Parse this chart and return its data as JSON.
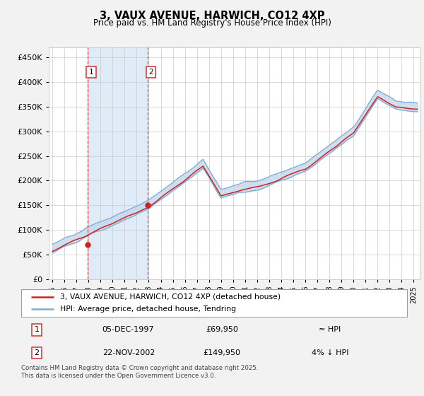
{
  "title": "3, VAUX AVENUE, HARWICH, CO12 4XP",
  "subtitle": "Price paid vs. HM Land Registry's House Price Index (HPI)",
  "ytick_values": [
    0,
    50000,
    100000,
    150000,
    200000,
    250000,
    300000,
    350000,
    400000,
    450000
  ],
  "ylim": [
    0,
    470000
  ],
  "xlim_start": 1994.7,
  "xlim_end": 2025.5,
  "hpi_fill_color": "#c8d9ee",
  "hpi_line_color": "#7aadcf",
  "price_color": "#cc2222",
  "shade_between_color": "#dce9f5",
  "vline_color": "#cc3333",
  "legend_price_label": "3, VAUX AVENUE, HARWICH, CO12 4XP (detached house)",
  "legend_hpi_label": "HPI: Average price, detached house, Tendring",
  "annotation1_date": "05-DEC-1997",
  "annotation1_price": "£69,950",
  "annotation1_hpi": "≈ HPI",
  "annotation1_year": 1997.92,
  "annotation1_price_val": 69950,
  "annotation2_date": "22-NOV-2002",
  "annotation2_price": "£149,950",
  "annotation2_hpi": "4% ↓ HPI",
  "annotation2_year": 2002.89,
  "annotation2_price_val": 149950,
  "footer": "Contains HM Land Registry data © Crown copyright and database right 2025.\nThis data is licensed under the Open Government Licence v3.0.",
  "background_color": "#f2f2f2",
  "plot_bg_color": "#ffffff"
}
